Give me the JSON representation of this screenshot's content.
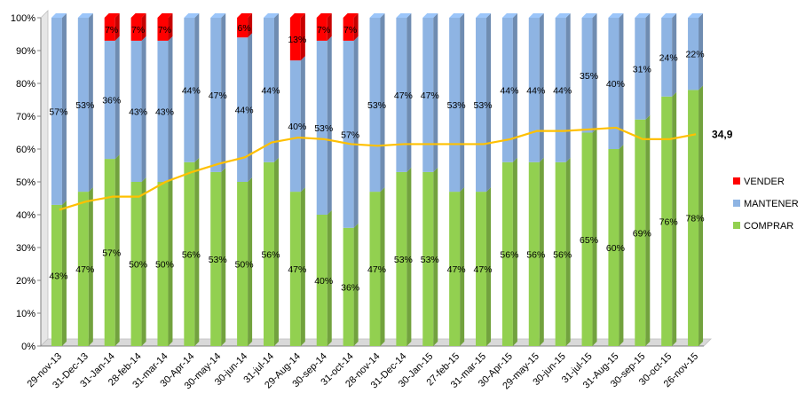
{
  "chart_data": {
    "type": "bar",
    "stacked": "percent",
    "categories": [
      "29-nov-13",
      "31-Dec-13",
      "31-Jan-14",
      "28-feb-14",
      "31-mar-14",
      "30-Apr-14",
      "30-may-14",
      "30-jun-14",
      "31-jul-14",
      "29-Aug-14",
      "30-sep-14",
      "31-oct-14",
      "28-nov-14",
      "31-Dec-14",
      "30-Jan-15",
      "27-feb-15",
      "31-mar-15",
      "30-Apr-15",
      "29-may-15",
      "30-jun-15",
      "31-jul-15",
      "31-Aug-15",
      "30-sep-15",
      "30-oct-15",
      "26-nov-15"
    ],
    "series": [
      {
        "name": "COMPRAR",
        "color": "#92d050",
        "values": [
          43,
          47,
          57,
          50,
          50,
          56,
          53,
          50,
          56,
          47,
          40,
          36,
          47,
          53,
          53,
          47,
          47,
          56,
          56,
          56,
          65,
          60,
          69,
          76,
          78
        ]
      },
      {
        "name": "MANTENER",
        "color": "#8eb4e3",
        "values": [
          57,
          53,
          36,
          43,
          43,
          44,
          47,
          44,
          44,
          40,
          53,
          57,
          53,
          47,
          47,
          53,
          53,
          44,
          44,
          44,
          35,
          40,
          31,
          24,
          22
        ]
      },
      {
        "name": "VENDER",
        "color": "#ff0000",
        "values": [
          0,
          0,
          7,
          7,
          7,
          0,
          0,
          6,
          0,
          13,
          7,
          7,
          0,
          0,
          0,
          0,
          0,
          0,
          0,
          0,
          0,
          0,
          0,
          0,
          0
        ]
      }
    ],
    "line": {
      "color": "#ffc000",
      "values": [
        41.5,
        44,
        45.5,
        45.5,
        50,
        53,
        55.5,
        57.5,
        62,
        63.5,
        63,
        61.5,
        61,
        61.5,
        61.5,
        61.5,
        61.5,
        63,
        65.5,
        65.5,
        66,
        66.5,
        63,
        63,
        64.5
      ],
      "end_label": "34,9"
    },
    "y_ticks": [
      "0%",
      "10%",
      "20%",
      "30%",
      "40%",
      "50%",
      "60%",
      "70%",
      "80%",
      "90%",
      "100%"
    ],
    "ylim": [
      0,
      100
    ],
    "grid": false,
    "legend": [
      "VENDER",
      "MANTENER",
      "COMPRAR"
    ],
    "legend_position": "right"
  }
}
